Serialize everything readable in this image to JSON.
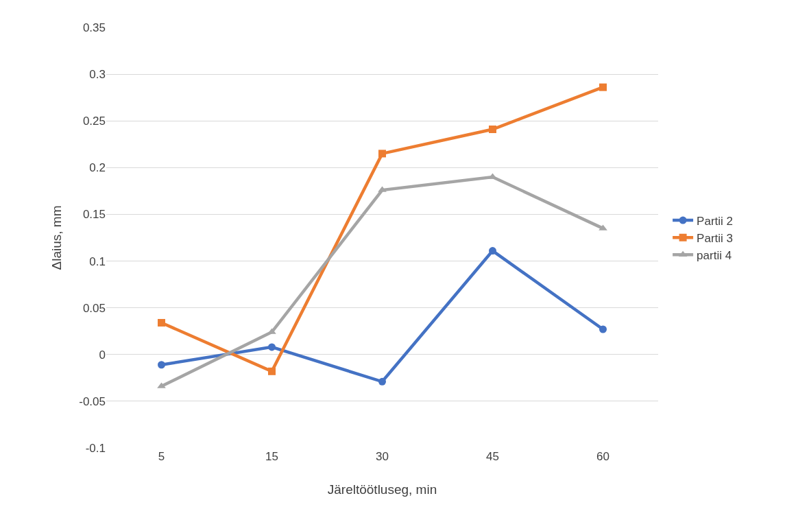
{
  "chart_data": {
    "type": "line",
    "xlabel": "Järeltöötluseg, min",
    "ylabel": "Δlaius, mm",
    "categories": [
      "5",
      "15",
      "30",
      "45",
      "60"
    ],
    "series": [
      {
        "name": "Partii 2",
        "color": "#4472c4",
        "marker": "circle",
        "values": [
          -0.011,
          0.008,
          -0.029,
          0.111,
          0.027
        ]
      },
      {
        "name": "Partii 3",
        "color": "#ed7d31",
        "marker": "square",
        "values": [
          0.034,
          -0.018,
          0.215,
          0.241,
          0.286
        ]
      },
      {
        "name": "partii 4",
        "color": "#a5a5a5",
        "marker": "triangle",
        "values": [
          -0.034,
          0.024,
          0.176,
          0.19,
          0.135
        ]
      }
    ],
    "ylim": [
      -0.1,
      0.35
    ],
    "yticks": [
      -0.1,
      -0.05,
      0,
      0.05,
      0.1,
      0.15,
      0.2,
      0.25,
      0.3,
      0.35
    ],
    "grid": "y",
    "legend": "right",
    "line_style": "solid"
  }
}
